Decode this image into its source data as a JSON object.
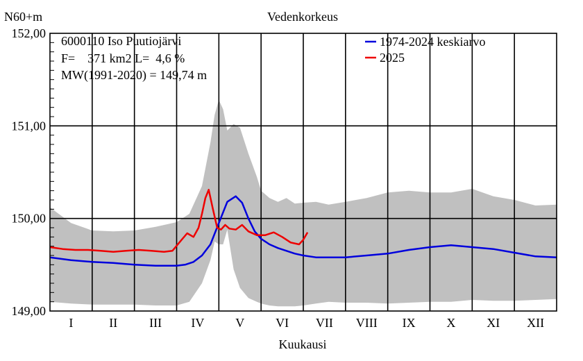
{
  "chart_data": {
    "type": "area",
    "title": "Vedenkorkeus",
    "ylabel": "N60+m",
    "xlabel": "Kuukausi",
    "ylim": [
      149.0,
      152.0
    ],
    "xlim": [
      0,
      12
    ],
    "y_ticks": [
      "149,00",
      "150,00",
      "151,00",
      "152,00"
    ],
    "y_tick_values": [
      149.0,
      150.0,
      151.0,
      152.0
    ],
    "months": [
      "I",
      "II",
      "III",
      "IV",
      "V",
      "VI",
      "VII",
      "VIII",
      "IX",
      "X",
      "XI",
      "XII"
    ],
    "grid": true,
    "legend_position": "top-right",
    "info": {
      "line1": "6000110 Iso Puutiojärvi",
      "line2": "F=    371 km2 L=  4,6 %",
      "line3": "MW(1991-2020) = 149,74 m"
    },
    "series": [
      {
        "name": "1974-2024 keskiarvo",
        "color": "#0000dd",
        "x": [
          0,
          0.5,
          1,
          1.5,
          2,
          2.5,
          3,
          3.2,
          3.4,
          3.6,
          3.8,
          4.0,
          4.2,
          4.4,
          4.55,
          4.7,
          4.85,
          5.0,
          5.2,
          5.4,
          5.6,
          5.8,
          6.0,
          6.3,
          6.6,
          7.0,
          7.5,
          8.0,
          8.5,
          9.0,
          9.5,
          10.0,
          10.5,
          11.0,
          11.5,
          12.0
        ],
        "values": [
          149.58,
          149.55,
          149.53,
          149.52,
          149.5,
          149.49,
          149.49,
          149.5,
          149.53,
          149.6,
          149.72,
          149.95,
          150.18,
          150.24,
          150.17,
          150.0,
          149.86,
          149.78,
          149.72,
          149.68,
          149.65,
          149.62,
          149.6,
          149.58,
          149.58,
          149.58,
          149.6,
          149.62,
          149.66,
          149.69,
          149.71,
          149.69,
          149.67,
          149.63,
          149.59,
          149.58
        ]
      },
      {
        "name": "2025",
        "color": "#ee0000",
        "x": [
          0,
          0.3,
          0.6,
          0.9,
          1.2,
          1.5,
          1.8,
          2.1,
          2.4,
          2.7,
          2.9,
          3.1,
          3.25,
          3.4,
          3.52,
          3.6,
          3.68,
          3.76,
          3.86,
          3.96,
          4.05,
          4.15,
          4.25,
          4.4,
          4.55,
          4.7,
          4.9,
          5.1,
          5.3,
          5.5,
          5.7,
          5.9,
          6.0,
          6.1
        ],
        "values": [
          149.69,
          149.67,
          149.66,
          149.66,
          149.65,
          149.64,
          149.65,
          149.66,
          149.65,
          149.64,
          149.65,
          149.76,
          149.84,
          149.8,
          149.9,
          150.05,
          150.22,
          150.31,
          150.1,
          149.9,
          149.88,
          149.93,
          149.89,
          149.88,
          149.93,
          149.86,
          149.82,
          149.82,
          149.85,
          149.8,
          149.74,
          149.72,
          149.77,
          149.85
        ]
      }
    ],
    "range_band": {
      "name": "",
      "color": "#c0c0c0",
      "x": [
        0,
        0.5,
        1,
        1.5,
        2,
        2.5,
        3,
        3.3,
        3.6,
        3.8,
        3.9,
        4.0,
        4.1,
        4.2,
        4.35,
        4.5,
        4.7,
        4.9,
        5.0,
        5.2,
        5.4,
        5.6,
        5.8,
        6.0,
        6.3,
        6.6,
        7.0,
        7.5,
        8.0,
        8.5,
        9.0,
        9.5,
        10.0,
        10.5,
        11.0,
        11.5,
        12.0
      ],
      "max": [
        150.12,
        149.95,
        149.87,
        149.86,
        149.87,
        149.91,
        149.96,
        150.05,
        150.35,
        150.82,
        151.12,
        151.28,
        151.18,
        150.95,
        151.02,
        150.98,
        150.7,
        150.45,
        150.3,
        150.22,
        150.18,
        150.22,
        150.16,
        150.17,
        150.18,
        150.15,
        150.18,
        150.22,
        150.28,
        150.3,
        150.28,
        150.28,
        150.32,
        150.24,
        150.2,
        150.14,
        150.15
      ],
      "min": [
        149.1,
        149.08,
        149.07,
        149.07,
        149.07,
        149.06,
        149.06,
        149.1,
        149.3,
        149.55,
        149.75,
        149.72,
        149.72,
        149.88,
        149.45,
        149.25,
        149.14,
        149.1,
        149.08,
        149.06,
        149.05,
        149.05,
        149.05,
        149.06,
        149.08,
        149.1,
        149.09,
        149.09,
        149.08,
        149.09,
        149.1,
        149.1,
        149.12,
        149.11,
        149.11,
        149.12,
        149.13
      ]
    }
  }
}
